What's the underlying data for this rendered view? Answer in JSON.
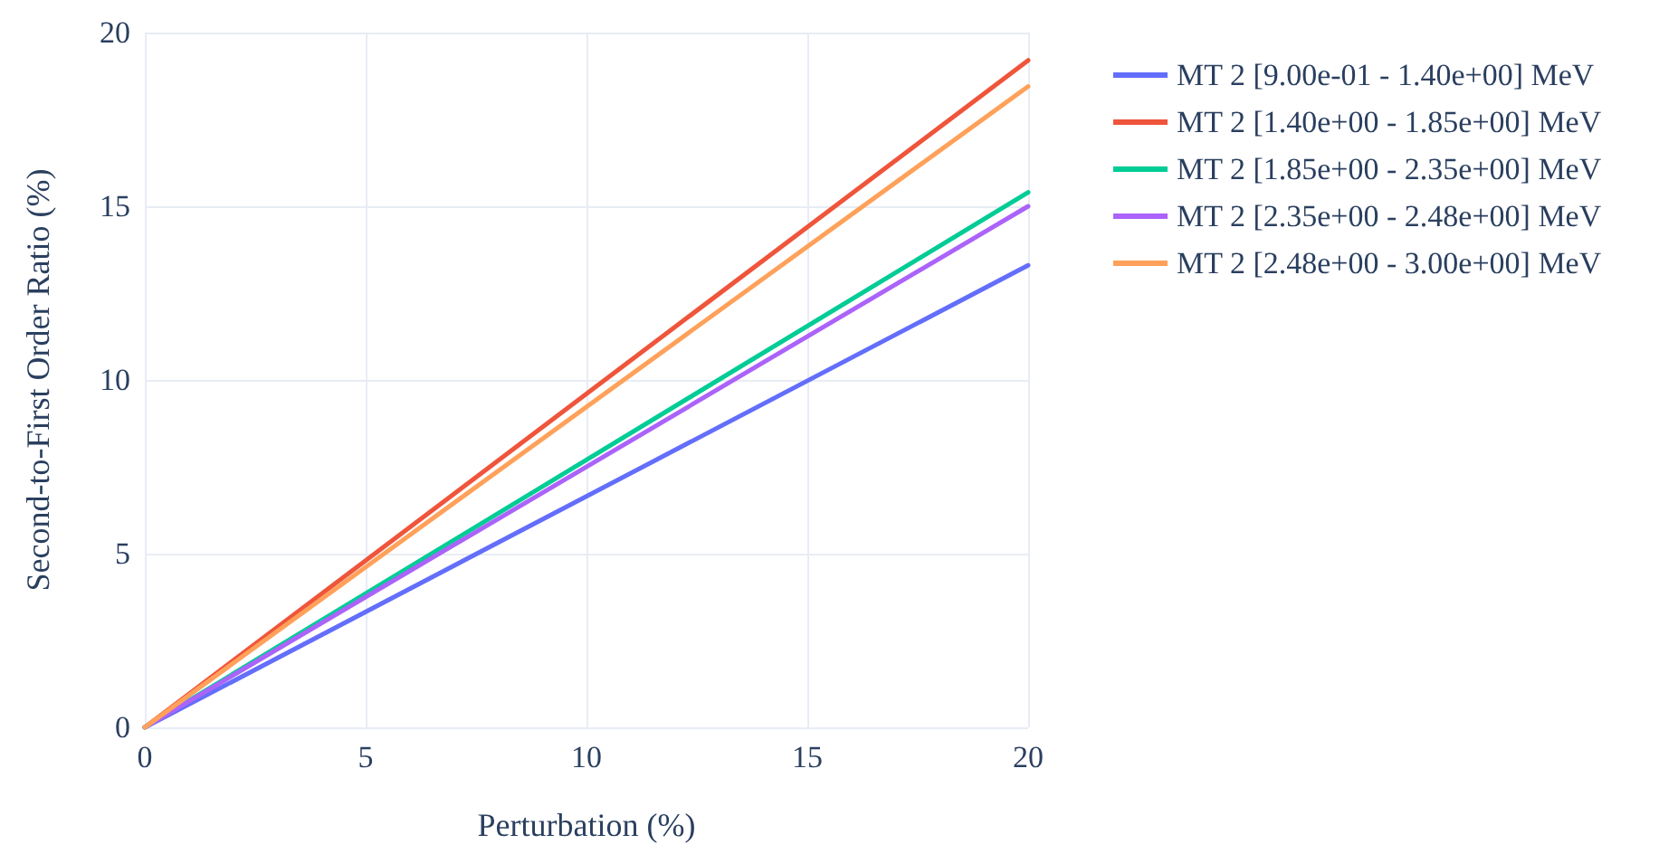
{
  "chart_data": {
    "type": "line",
    "xlabel": "Perturbation (%)",
    "ylabel": "Second-to-First Order Ratio (%)",
    "x": [
      0,
      20
    ],
    "xlim": [
      0,
      20
    ],
    "xticks": [
      0,
      5,
      10,
      15,
      20
    ],
    "ylim": [
      0,
      20
    ],
    "yticks": [
      0,
      5,
      10,
      15,
      20
    ],
    "grid": true,
    "legend": "top right",
    "marker": "none",
    "line_style": "solid",
    "series": [
      {
        "name": "MT 2 [9.00e-01 - 1.40e+00] MeV",
        "color": "#636efa",
        "values": [
          0,
          13.3
        ]
      },
      {
        "name": "MT 2 [1.40e+00 - 1.85e+00] MeV",
        "color": "#ef553b",
        "values": [
          0,
          19.2
        ]
      },
      {
        "name": "MT 2 [1.85e+00 - 2.35e+00] MeV",
        "color": "#00cc96",
        "values": [
          0,
          15.4
        ]
      },
      {
        "name": "MT 2 [2.35e+00 - 2.48e+00] MeV",
        "color": "#ab63fa",
        "values": [
          0,
          15.0
        ]
      },
      {
        "name": "MT 2 [2.48e+00 - 3.00e+00] MeV",
        "color": "#ffa15a",
        "values": [
          0,
          18.45
        ]
      }
    ]
  }
}
